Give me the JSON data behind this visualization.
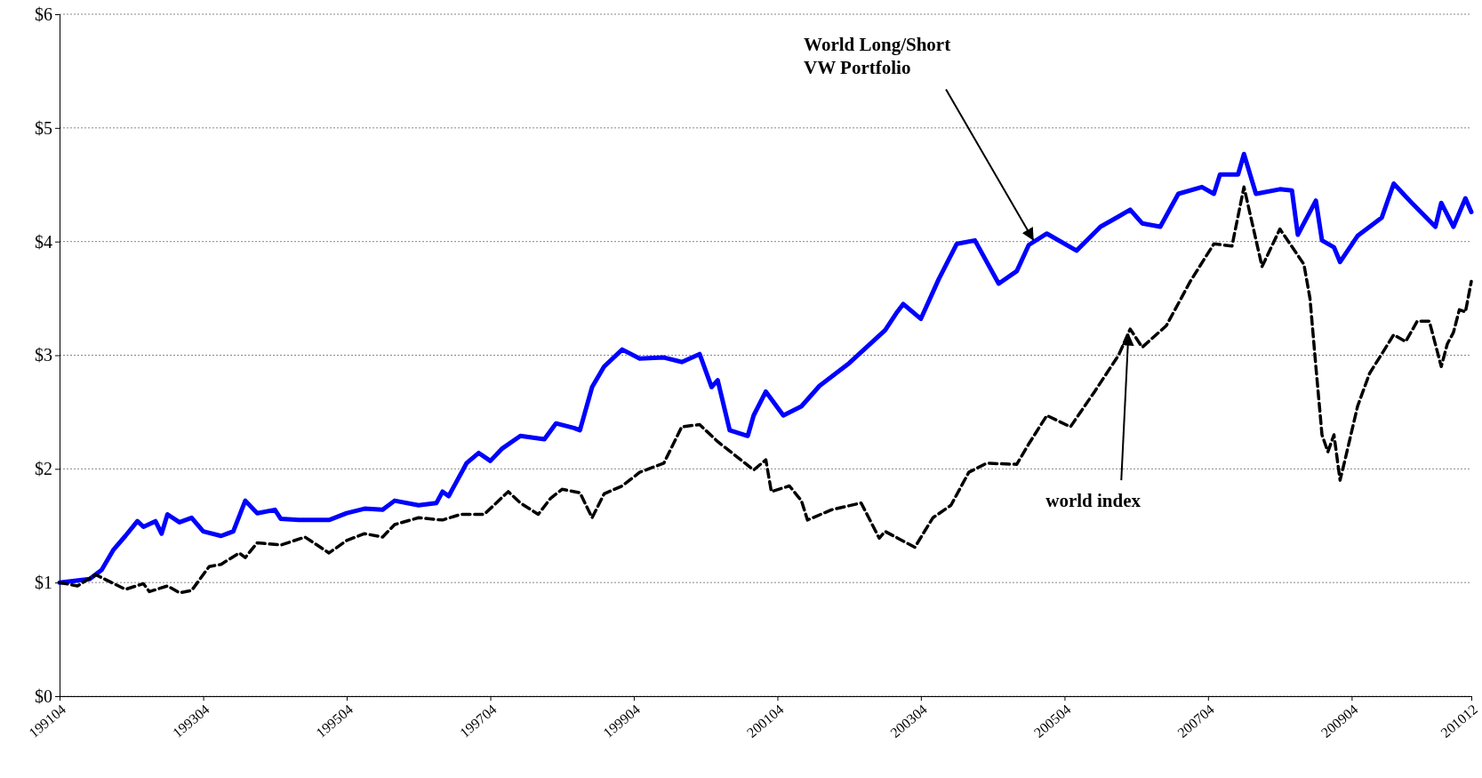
{
  "chart_data": {
    "type": "line",
    "xlim": [
      "1991-04",
      "2010-12"
    ],
    "xticks": [
      {
        "value": "1991-04",
        "label": "199104"
      },
      {
        "value": "1993-04",
        "label": "199304"
      },
      {
        "value": "1995-04",
        "label": "199504"
      },
      {
        "value": "1997-04",
        "label": "199704"
      },
      {
        "value": "1999-04",
        "label": "199904"
      },
      {
        "value": "2001-04",
        "label": "200104"
      },
      {
        "value": "2003-04",
        "label": "200304"
      },
      {
        "value": "2005-04",
        "label": "200504"
      },
      {
        "value": "2007-04",
        "label": "200704"
      },
      {
        "value": "2009-04",
        "label": "200904"
      },
      {
        "value": "2010-12",
        "label": "201012"
      }
    ],
    "ylim": [
      0,
      6
    ],
    "yticks": [
      {
        "value": 0,
        "label": "$0"
      },
      {
        "value": 1,
        "label": "$1"
      },
      {
        "value": 2,
        "label": "$2"
      },
      {
        "value": 3,
        "label": "$3"
      },
      {
        "value": 4,
        "label": "$4"
      },
      {
        "value": 5,
        "label": "$5"
      },
      {
        "value": 6,
        "label": "$6"
      }
    ],
    "grid": "y",
    "legend": false,
    "marker": "none",
    "annotations": [
      {
        "text": "World Long/Short\nVW Portfolio",
        "x": "2004-11",
        "y": 3.97
      },
      {
        "text": "world index",
        "x": "2006-03",
        "y": 3.23
      }
    ],
    "series": [
      {
        "color": "#0000ff",
        "line_style": "solid",
        "x": [
          "1991-04",
          "1991-09",
          "1991-11",
          "1992-01",
          "1992-03",
          "1992-05",
          "1992-06",
          "1992-08",
          "1992-09",
          "1992-10",
          "1992-12",
          "1993-02",
          "1993-04",
          "1993-07",
          "1993-09",
          "1993-11",
          "1994-01",
          "1994-04",
          "1994-05",
          "1994-08",
          "1995-01",
          "1995-04",
          "1995-07",
          "1995-10",
          "1995-12",
          "1996-04",
          "1996-07",
          "1996-08",
          "1996-09",
          "1996-12",
          "1997-02",
          "1997-04",
          "1997-06",
          "1997-09",
          "1998-01",
          "1998-03",
          "1998-06",
          "1998-07",
          "1998-09",
          "1998-11",
          "1999-02",
          "1999-05",
          "1999-09",
          "1999-12",
          "2000-03",
          "2000-05",
          "2000-06",
          "2000-08",
          "2000-11",
          "2000-12",
          "2001-02",
          "2001-05",
          "2001-08",
          "2001-11",
          "2002-04",
          "2002-10",
          "2002-12",
          "2003-01",
          "2003-04",
          "2003-07",
          "2003-10",
          "2004-01",
          "2004-05",
          "2004-08",
          "2004-10",
          "2005-01",
          "2005-06",
          "2005-10",
          "2006-01",
          "2006-03",
          "2006-05",
          "2006-08",
          "2006-11",
          "2007-03",
          "2007-05",
          "2007-06",
          "2007-09",
          "2007-10",
          "2007-12",
          "2008-04",
          "2008-06",
          "2008-07",
          "2008-10",
          "2008-11",
          "2009-01",
          "2009-02",
          "2009-05",
          "2009-09",
          "2009-11",
          "2010-02",
          "2010-06",
          "2010-07",
          "2010-09",
          "2010-11",
          "2010-12"
        ],
        "values": [
          1.0,
          1.03,
          1.11,
          1.29,
          1.41,
          1.54,
          1.49,
          1.54,
          1.43,
          1.6,
          1.53,
          1.57,
          1.45,
          1.41,
          1.45,
          1.72,
          1.61,
          1.64,
          1.56,
          1.55,
          1.55,
          1.61,
          1.65,
          1.64,
          1.72,
          1.68,
          1.7,
          1.8,
          1.76,
          2.05,
          2.14,
          2.07,
          2.18,
          2.29,
          2.26,
          2.4,
          2.36,
          2.34,
          2.72,
          2.9,
          3.05,
          2.97,
          2.98,
          2.94,
          3.01,
          2.72,
          2.78,
          2.34,
          2.29,
          2.47,
          2.68,
          2.47,
          2.55,
          2.73,
          2.93,
          3.22,
          3.38,
          3.45,
          3.32,
          3.67,
          3.98,
          4.01,
          3.63,
          3.74,
          3.97,
          4.07,
          3.92,
          4.13,
          4.22,
          4.28,
          4.16,
          4.13,
          4.42,
          4.48,
          4.42,
          4.59,
          4.59,
          4.77,
          4.42,
          4.46,
          4.45,
          4.06,
          4.36,
          4.01,
          3.95,
          3.82,
          4.05,
          4.21,
          4.51,
          4.34,
          4.13,
          4.34,
          4.13,
          4.38,
          4.26
        ]
      },
      {
        "color": "#000000",
        "line_style": "dashed",
        "x": [
          "1991-04",
          "1991-07",
          "1991-10",
          "1992-03",
          "1992-06",
          "1992-07",
          "1992-10",
          "1992-12",
          "1993-02",
          "1993-05",
          "1993-07",
          "1993-10",
          "1993-11",
          "1994-01",
          "1994-05",
          "1994-09",
          "1995-01",
          "1995-04",
          "1995-07",
          "1995-10",
          "1995-12",
          "1996-04",
          "1996-08",
          "1996-11",
          "1997-03",
          "1997-07",
          "1997-09",
          "1997-12",
          "1998-02",
          "1998-04",
          "1998-07",
          "1998-09",
          "1998-11",
          "1999-02",
          "1999-05",
          "1999-09",
          "1999-12",
          "2000-03",
          "2000-06",
          "2000-12",
          "2001-02",
          "2001-03",
          "2001-06",
          "2001-08",
          "2001-09",
          "2002-01",
          "2002-06",
          "2002-09",
          "2002-10",
          "2003-03",
          "2003-06",
          "2003-09",
          "2003-12",
          "2004-03",
          "2004-08",
          "2004-10",
          "2005-01",
          "2005-05",
          "2005-09",
          "2006-01",
          "2006-03",
          "2006-05",
          "2006-09",
          "2007-01",
          "2007-05",
          "2007-08",
          "2007-10",
          "2008-01",
          "2008-04",
          "2008-08",
          "2008-09",
          "2008-10",
          "2008-11",
          "2008-12",
          "2009-01",
          "2009-02",
          "2009-03",
          "2009-05",
          "2009-07",
          "2009-09",
          "2009-11",
          "2010-01",
          "2010-03",
          "2010-05",
          "2010-07",
          "2010-08",
          "2010-09",
          "2010-10",
          "2010-11",
          "2010-12"
        ],
        "values": [
          1.0,
          0.97,
          1.07,
          0.94,
          0.99,
          0.92,
          0.97,
          0.91,
          0.93,
          1.14,
          1.16,
          1.26,
          1.22,
          1.35,
          1.33,
          1.4,
          1.26,
          1.37,
          1.43,
          1.4,
          1.51,
          1.57,
          1.55,
          1.6,
          1.6,
          1.8,
          1.7,
          1.6,
          1.74,
          1.82,
          1.79,
          1.57,
          1.78,
          1.85,
          1.97,
          2.05,
          2.37,
          2.39,
          2.24,
          1.99,
          2.08,
          1.8,
          1.85,
          1.72,
          1.55,
          1.64,
          1.7,
          1.39,
          1.45,
          1.31,
          1.57,
          1.68,
          1.97,
          2.05,
          2.04,
          2.22,
          2.47,
          2.37,
          2.68,
          3.0,
          3.23,
          3.07,
          3.26,
          3.65,
          3.98,
          3.96,
          4.48,
          3.78,
          4.11,
          3.8,
          3.5,
          2.9,
          2.3,
          2.15,
          2.3,
          1.9,
          2.1,
          2.55,
          2.84,
          3.01,
          3.18,
          3.12,
          3.3,
          3.3,
          2.9,
          3.1,
          3.2,
          3.4,
          3.38,
          3.65
        ]
      }
    ]
  }
}
